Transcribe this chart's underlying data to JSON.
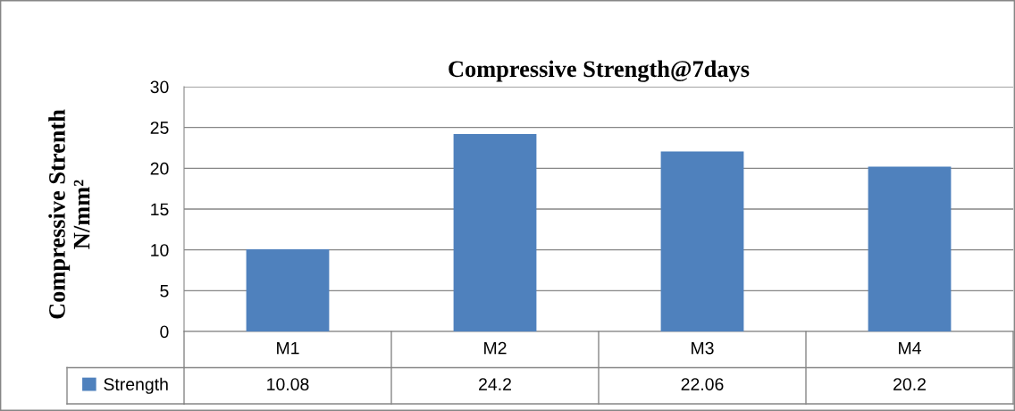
{
  "chart_data": {
    "type": "bar",
    "title": "Compressive Strength@7days",
    "ylabel": "Compressive Strenth\nN/mm²",
    "categories": [
      "M1",
      "M2",
      "M3",
      "M4"
    ],
    "series": [
      {
        "name": "Strength",
        "color": "#4f81bd",
        "values": [
          10.08,
          24.2,
          22.06,
          20.2
        ]
      }
    ],
    "ylim": [
      0,
      30
    ],
    "yticks": [
      0,
      5,
      10,
      15,
      20,
      25,
      30
    ],
    "grid": "y",
    "legend": "bottom",
    "data_labels": true
  }
}
